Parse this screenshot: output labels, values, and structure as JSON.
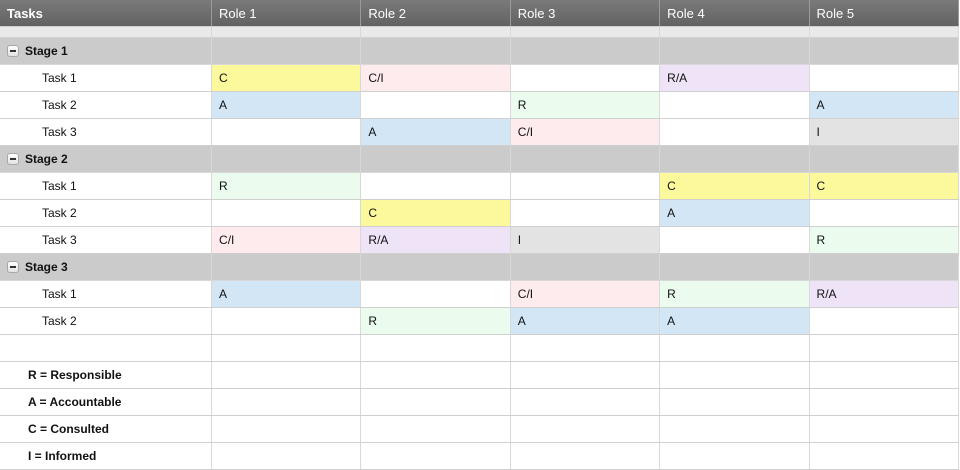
{
  "header": {
    "tasks": "Tasks",
    "roles": [
      "Role 1",
      "Role 2",
      "Role 3",
      "Role 4",
      "Role 5"
    ]
  },
  "cell_colors": {
    "C": "#fbf99b",
    "C/I": "#fdebee",
    "R/A": "#efe3f8",
    "A": "#d3e6f5",
    "R": "#ebfbee",
    "I": "#e3e3e3"
  },
  "stages": [
    {
      "name": "Stage 1",
      "tasks": [
        {
          "name": "Task 1",
          "cells": [
            "C",
            "C/I",
            "",
            "R/A",
            ""
          ]
        },
        {
          "name": "Task 2",
          "cells": [
            "A",
            "",
            "R",
            "",
            "A"
          ]
        },
        {
          "name": "Task 3",
          "cells": [
            "",
            "A",
            "C/I",
            "",
            "I"
          ]
        }
      ]
    },
    {
      "name": "Stage 2",
      "tasks": [
        {
          "name": "Task 1",
          "cells": [
            "R",
            "",
            "",
            "C",
            "C"
          ]
        },
        {
          "name": "Task 2",
          "cells": [
            "",
            "C",
            "",
            "A",
            ""
          ]
        },
        {
          "name": "Task 3",
          "cells": [
            "C/I",
            "R/A",
            "I",
            "",
            "R"
          ]
        }
      ]
    },
    {
      "name": "Stage 3",
      "tasks": [
        {
          "name": "Task 1",
          "cells": [
            "A",
            "",
            "C/I",
            "R",
            "R/A"
          ]
        },
        {
          "name": "Task 2",
          "cells": [
            "",
            "R",
            "A",
            "A",
            ""
          ]
        }
      ]
    }
  ],
  "legend": [
    "R = Responsible",
    "A = Accountable",
    "C = Consulted",
    "I = Informed"
  ]
}
